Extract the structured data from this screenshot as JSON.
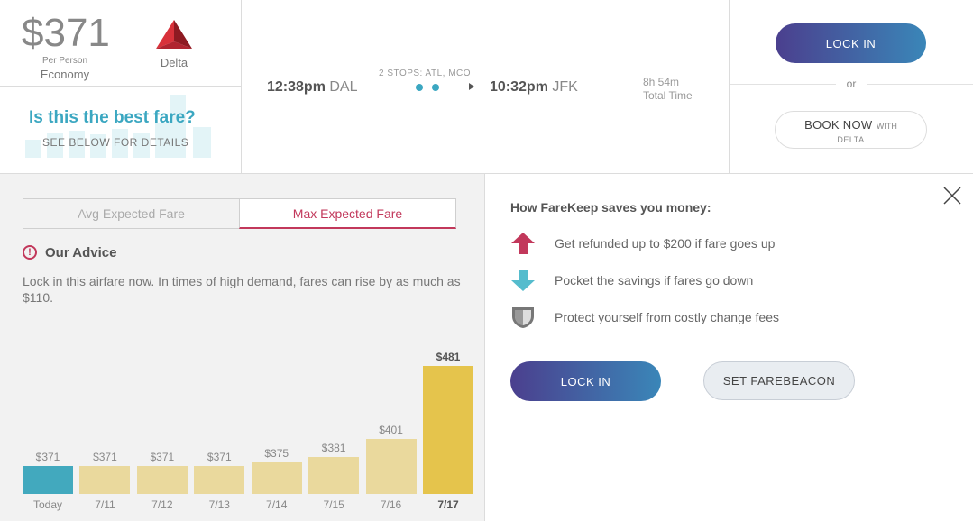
{
  "fare": {
    "price": "$371",
    "per_person": "Per Person",
    "cabin": "Economy",
    "airline": "Delta"
  },
  "best_fare": {
    "question": "Is this the best fare?",
    "subtext": "SEE BELOW FOR DETAILS"
  },
  "flight": {
    "departure_time": "12:38pm",
    "departure_airport": "DAL",
    "stops": "2 STOPS: ATL, MCO",
    "arrival_time": "10:32pm",
    "arrival_airport": "JFK",
    "duration": "8h 54m",
    "duration_label": "Total Time"
  },
  "actions": {
    "lock_in": "LOCK IN",
    "or": "or",
    "book_now": "BOOK NOW",
    "book_with": "WITH",
    "book_airline": "DELTA"
  },
  "tabs": [
    {
      "label": "Avg Expected Fare",
      "active": false
    },
    {
      "label": "Max Expected Fare",
      "active": true
    }
  ],
  "advice": {
    "icon": "alert-circle-icon",
    "title": "Our Advice",
    "text": "Lock in this airfare now. In times of high demand, fares can rise by as much as $110."
  },
  "chart_data": {
    "type": "bar",
    "categories": [
      "Today",
      "7/11",
      "7/12",
      "7/13",
      "7/14",
      "7/15",
      "7/16",
      "7/17"
    ],
    "values": [
      371,
      371,
      371,
      371,
      375,
      381,
      401,
      481
    ],
    "value_labels": [
      "$371",
      "$371",
      "$371",
      "$371",
      "$375",
      "$381",
      "$401",
      "$481"
    ],
    "highlight_first": true,
    "highlight_max": true,
    "colors": {
      "today": "#42a9be",
      "default": "#ead99d",
      "peak": "#e5c44c"
    }
  },
  "farekeep": {
    "title": "How FareKeep saves you money:",
    "features": [
      {
        "icon": "arrow-up-icon",
        "text": "Get refunded up to $200 if fare goes up",
        "color": "#c2385b"
      },
      {
        "icon": "arrow-down-icon",
        "text": "Pocket the savings if fares go down",
        "color": "#55bccd"
      },
      {
        "icon": "shield-icon",
        "text": "Protect yourself from costly change fees",
        "color": "#777777"
      }
    ],
    "lock_in": "LOCK IN",
    "farebeacon": "SET FAREBEACON"
  },
  "colors": {
    "accent": "#3ba7c1",
    "alert": "#c2385b",
    "gradient_start": "#4b3f8e",
    "gradient_end": "#3a86b8"
  }
}
